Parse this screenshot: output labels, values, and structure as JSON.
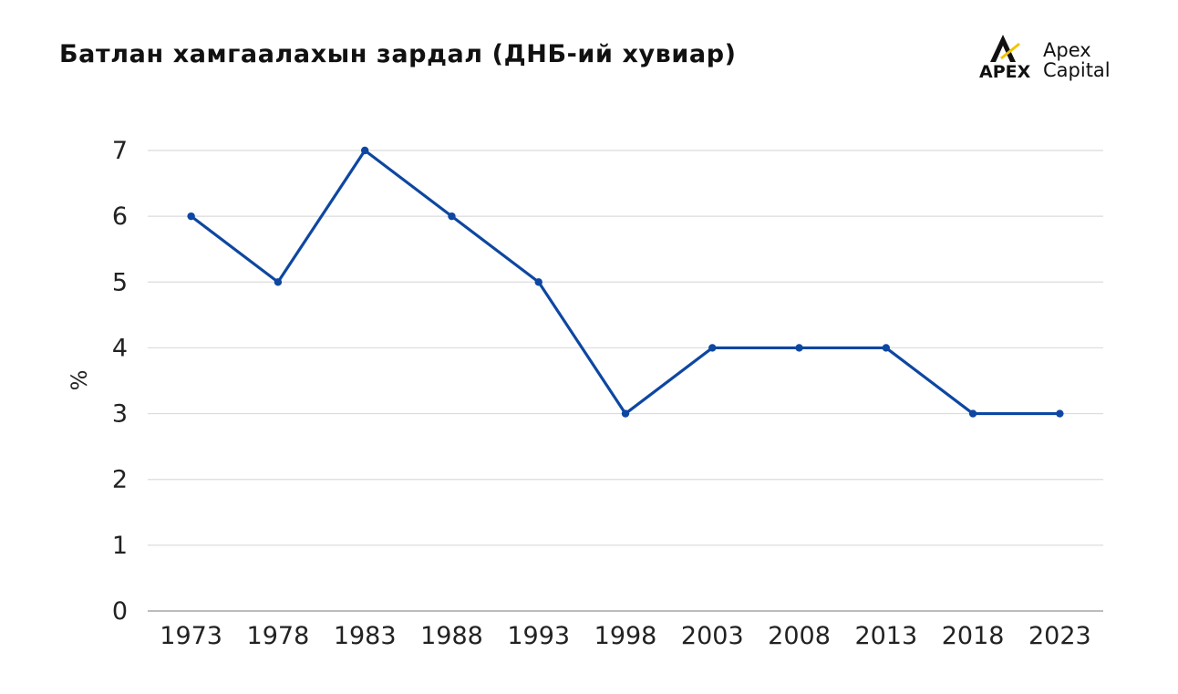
{
  "title": "Батлан хамгаалахын зардал (ДНБ-ий хувиар)",
  "logo": {
    "mark": "APEX",
    "name_line1": "Apex",
    "name_line2": "Capital",
    "accent": "#f2c500"
  },
  "chart_data": {
    "type": "line",
    "title": "Батлан хамгаалахын зардал (ДНБ-ий хувиар)",
    "xlabel": "",
    "ylabel": "%",
    "categories": [
      "1973",
      "1978",
      "1983",
      "1988",
      "1993",
      "1998",
      "2003",
      "2008",
      "2013",
      "2018",
      "2023"
    ],
    "series": [
      {
        "values": [
          6,
          5,
          7,
          6,
          5,
          3,
          4,
          4,
          4,
          3,
          3
        ],
        "color": "#0d47a1"
      }
    ],
    "ylim": [
      0,
      7
    ],
    "yticks": [
      0,
      1,
      2,
      3,
      4,
      5,
      6,
      7
    ],
    "grid": true,
    "gridColor": "#dcdcdc"
  }
}
